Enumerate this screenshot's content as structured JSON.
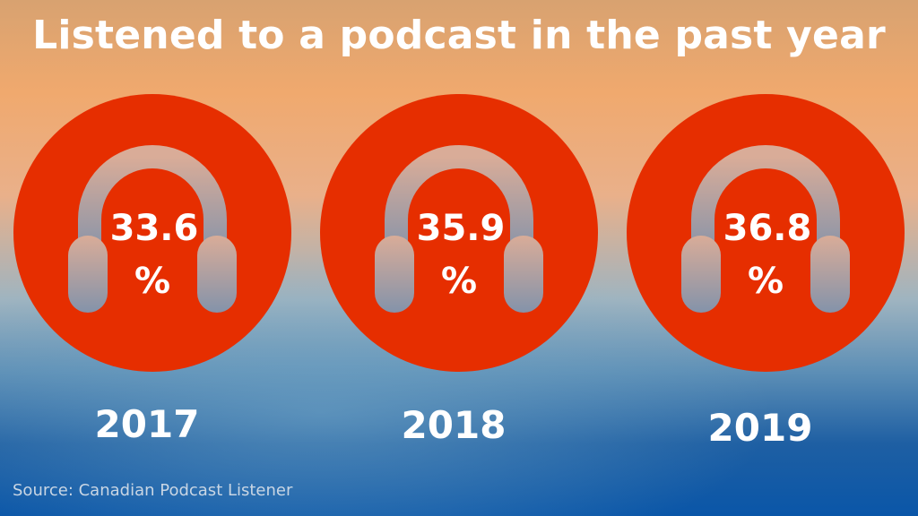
{
  "chart_data": {
    "type": "bar",
    "title": "Listened to a podcast in the past year",
    "categories": [
      "2017",
      "2018",
      "2019"
    ],
    "values": [
      33.6,
      35.9,
      36.8
    ],
    "value_labels": [
      "33.6",
      "35.9",
      "36.8"
    ],
    "unit": "%",
    "source": "Source: Canadian Podcast Listener",
    "marker": "headphones-icon",
    "circle_color": "#e62e00",
    "icon_color": "#c8a594"
  }
}
